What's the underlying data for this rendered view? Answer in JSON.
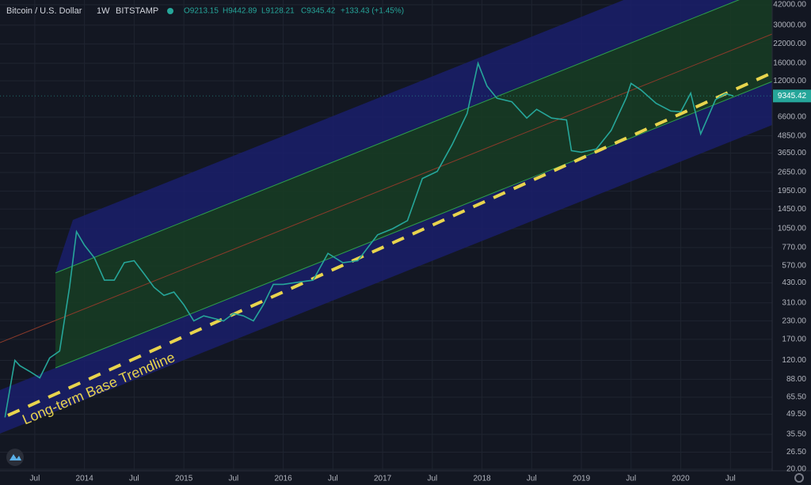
{
  "chart_data": {
    "type": "line",
    "header": {
      "symbol": "Bitcoin / U.S. Dollar",
      "interval": "1W",
      "exchange": "BITSTAMP",
      "open": "O9213.15",
      "high": "H9442.89",
      "low": "L9128.21",
      "close": "C9345.42",
      "change": "+133.43 (+1.45%)"
    },
    "annotation": "Long-term Base Trendline",
    "color": "#26a69a",
    "log_scale": true,
    "grid": true,
    "x": [
      2013.2,
      2013.3,
      2013.35,
      2013.45,
      2013.55,
      2013.65,
      2013.75,
      2013.85,
      2013.92,
      2014.0,
      2014.1,
      2014.2,
      2014.3,
      2014.4,
      2014.5,
      2014.6,
      2014.7,
      2014.8,
      2014.9,
      2015.0,
      2015.1,
      2015.2,
      2015.3,
      2015.4,
      2015.5,
      2015.6,
      2015.7,
      2015.8,
      2015.9,
      2016.0,
      2016.1,
      2016.3,
      2016.45,
      2016.6,
      2016.75,
      2016.95,
      2017.1,
      2017.25,
      2017.4,
      2017.55,
      2017.7,
      2017.85,
      2017.96,
      2018.05,
      2018.15,
      2018.3,
      2018.45,
      2018.55,
      2018.7,
      2018.85,
      2018.9,
      2019.0,
      2019.15,
      2019.3,
      2019.45,
      2019.5,
      2019.6,
      2019.75,
      2019.9,
      2020.0,
      2020.1,
      2020.2,
      2020.35,
      2020.45,
      2020.53
    ],
    "values": [
      47,
      120,
      110,
      100,
      90,
      125,
      140,
      400,
      1000,
      800,
      650,
      450,
      450,
      600,
      620,
      500,
      400,
      350,
      370,
      300,
      230,
      250,
      240,
      230,
      260,
      250,
      230,
      300,
      420,
      420,
      430,
      450,
      700,
      600,
      620,
      950,
      1050,
      1200,
      2400,
      2700,
      4200,
      7000,
      16000,
      11000,
      9000,
      8500,
      6500,
      7500,
      6500,
      6300,
      3800,
      3700,
      3900,
      5300,
      9000,
      11500,
      10300,
      8300,
      7300,
      7200,
      9800,
      5000,
      8800,
      9700,
      9345.42
    ],
    "xlim": [
      2013.15,
      2020.92
    ],
    "xticks": [
      {
        "value": 2013.5,
        "label": "Jul"
      },
      2014,
      {
        "value": 2014.5,
        "label": "Jul"
      },
      2015,
      {
        "value": 2015.5,
        "label": "Jul"
      },
      2016,
      {
        "value": 2016.5,
        "label": "Jul"
      },
      2017,
      {
        "value": 2017.5,
        "label": "Jul"
      },
      2018,
      {
        "value": 2018.5,
        "label": "Jul"
      },
      2019,
      {
        "value": 2019.5,
        "label": "Jul"
      },
      2020,
      {
        "value": 2020.5,
        "label": "Jul"
      }
    ],
    "ylim": [
      19.5,
      45400
    ],
    "yticks": [
      {
        "value": 42000,
        "label": "42000.00"
      },
      {
        "value": 30000,
        "label": "30000.00"
      },
      {
        "value": 22000,
        "label": "22000.00"
      },
      {
        "value": 16000,
        "label": "16000.00"
      },
      {
        "value": 12000,
        "label": "12000.00"
      },
      {
        "value": 6600,
        "label": "6600.00"
      },
      {
        "value": 4850,
        "label": "4850.00"
      },
      {
        "value": 3650,
        "label": "3650.00"
      },
      {
        "value": 2650,
        "label": "2650.00"
      },
      {
        "value": 1950,
        "label": "1950.00"
      },
      {
        "value": 1450,
        "label": "1450.00"
      },
      {
        "value": 1050,
        "label": "1050.00"
      },
      {
        "value": 770,
        "label": "770.00"
      },
      {
        "value": 570,
        "label": "570.00"
      },
      {
        "value": 430,
        "label": "430.00"
      },
      {
        "value": 310,
        "label": "310.00"
      },
      {
        "value": 230,
        "label": "230.00"
      },
      {
        "value": 170,
        "label": "170.00"
      },
      {
        "value": 120,
        "label": "120.00"
      },
      {
        "value": 88,
        "label": "88.00"
      },
      {
        "value": 65.5,
        "label": "65.50"
      },
      {
        "value": 49.5,
        "label": "49.50"
      },
      {
        "value": 35.5,
        "label": "35.50"
      },
      {
        "value": 26.5,
        "label": "26.50"
      },
      {
        "value": 20,
        "label": "20.00"
      }
    ]
  }
}
